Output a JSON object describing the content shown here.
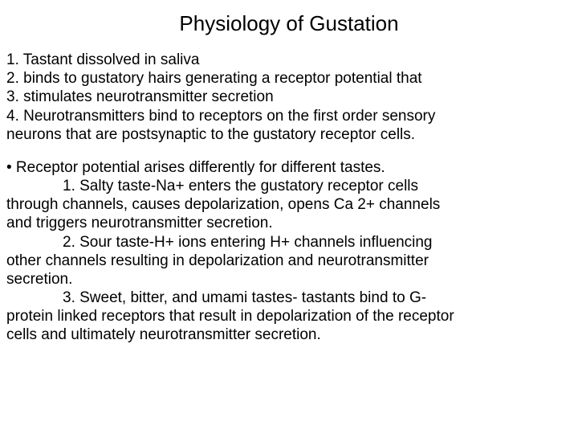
{
  "title": "Physiology of Gustation",
  "steps": {
    "s1": "1. Tastant dissolved in saliva",
    "s2": "2. binds to gustatory hairs generating a receptor potential that",
    "s3": "3. stimulates neurotransmitter secretion",
    "s4a": "4. Neurotransmitters bind to receptors on the first order sensory",
    "s4b": "neurons that are postsynaptic to the gustatory receptor cells."
  },
  "bullet": "•  Receptor potential arises differently for different tastes.",
  "tastes": {
    "t1a": "1. Salty taste-Na+ enters the gustatory receptor cells",
    "t1b": "through channels, causes depolarization, opens Ca 2+ channels",
    "t1c": "and triggers neurotransmitter secretion.",
    "t2a": "2. Sour taste-H+ ions entering H+ channels influencing",
    "t2b": "other channels resulting in depolarization and neurotransmitter",
    "t2c": "secretion.",
    "t3a": "3. Sweet, bitter, and umami tastes- tastants bind to G-",
    "t3b": "protein linked receptors that result in depolarization of the receptor",
    "t3c": "cells and ultimately neurotransmitter secretion."
  },
  "colors": {
    "background": "#ffffff",
    "text": "#000000"
  },
  "typography": {
    "title_fontsize": 26,
    "body_fontsize": 19,
    "font_family": "Arial"
  }
}
